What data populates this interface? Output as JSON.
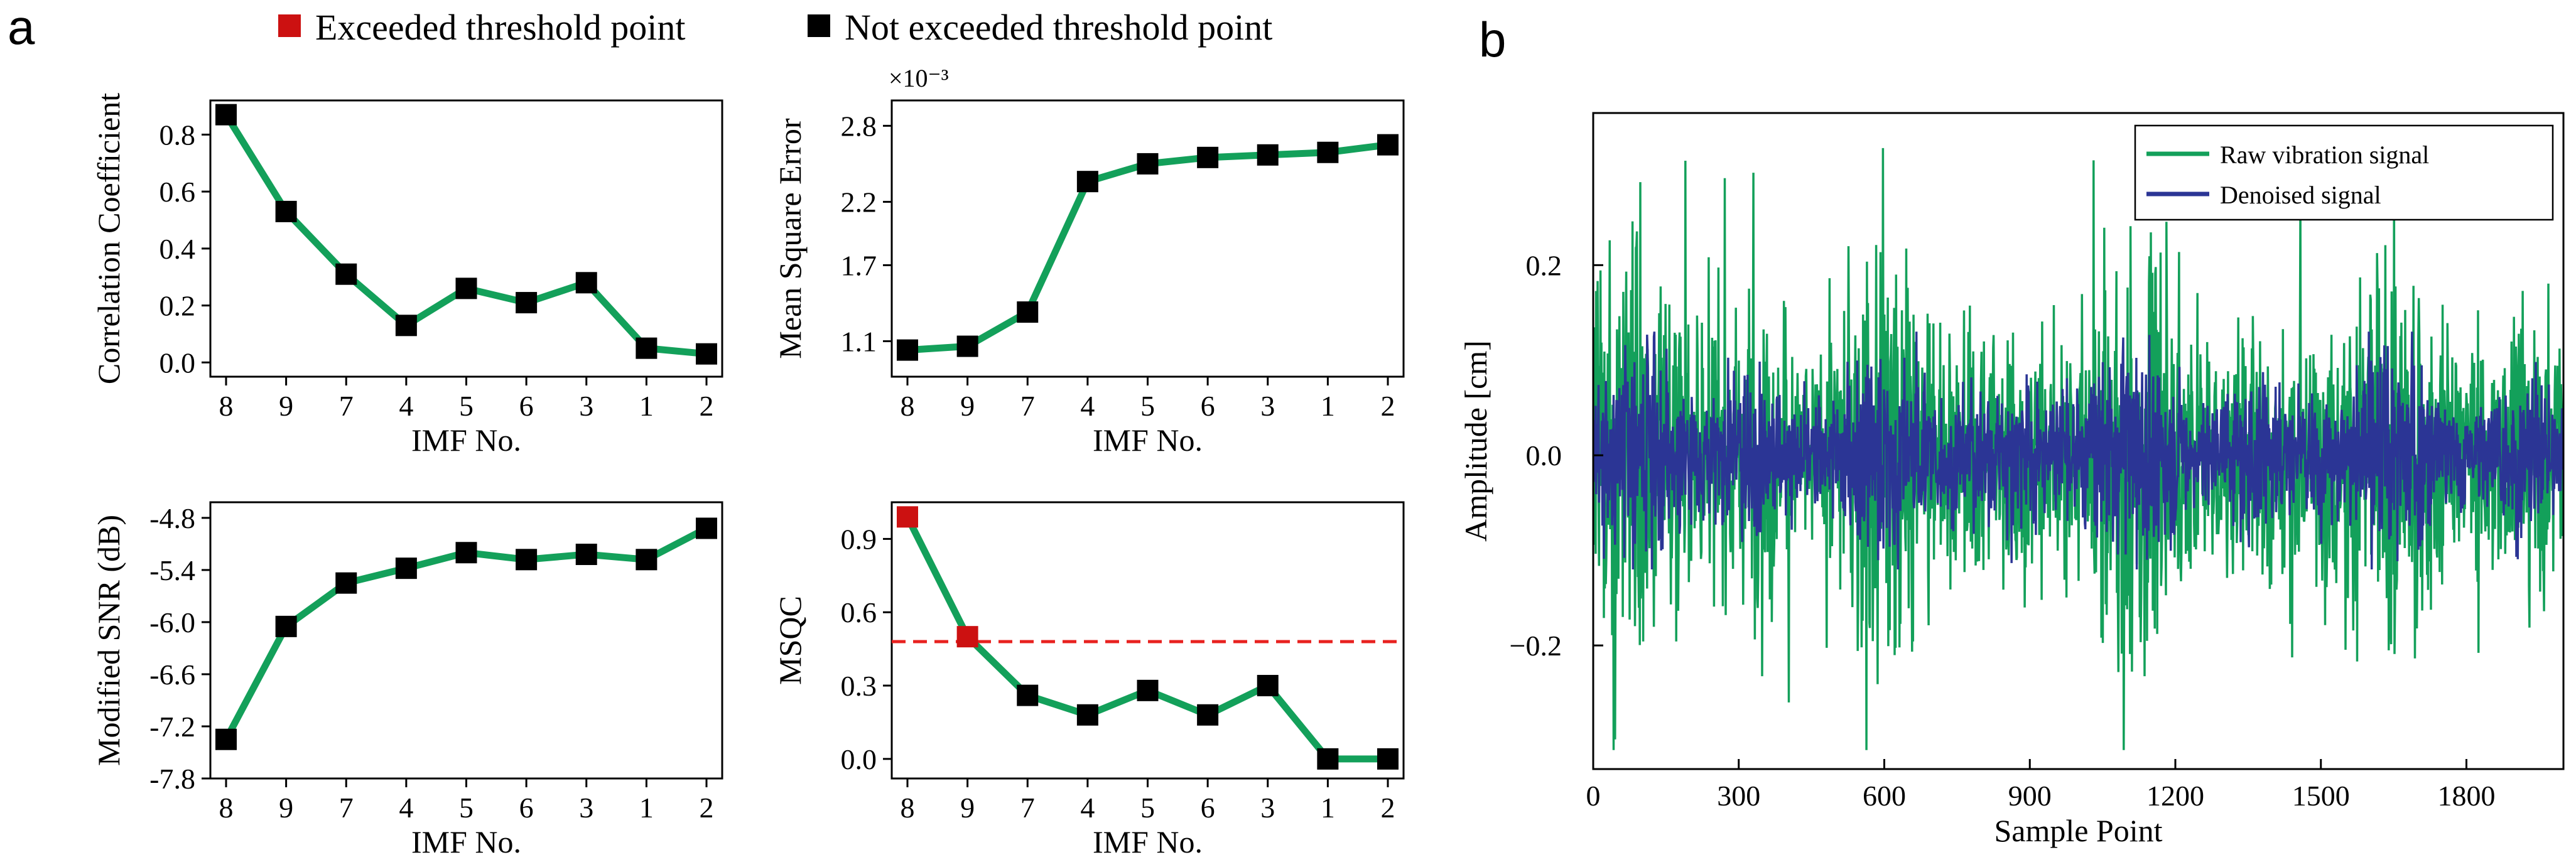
{
  "figure": {
    "panel_a_label": "a",
    "panel_b_label": "b",
    "legend": {
      "exceeded_label": "Exceeded threshold point",
      "not_exceeded_label": "Not exceeded threshold point",
      "exceeded_color": "#cc1111",
      "not_exceeded_color": "#000000"
    },
    "line_color": "#13a05a",
    "threshold_color": "#e8211f"
  },
  "chart_data": [
    {
      "id": "cc",
      "type": "line",
      "categories": [
        "8",
        "9",
        "7",
        "4",
        "5",
        "6",
        "3",
        "1",
        "2"
      ],
      "values": [
        0.87,
        0.53,
        0.31,
        0.13,
        0.26,
        0.21,
        0.28,
        0.05,
        0.03
      ],
      "xlabel": "IMF No.",
      "ylabel": "Correlation Coefficient",
      "ylim": [
        -0.05,
        0.92
      ],
      "yticks": [
        0.0,
        0.2,
        0.4,
        0.6,
        0.8
      ],
      "ytick_labels": [
        "0.0",
        "0.2",
        "0.4",
        "0.6",
        "0.8"
      ],
      "marker_colors": [
        "black",
        "black",
        "black",
        "black",
        "black",
        "black",
        "black",
        "black",
        "black"
      ]
    },
    {
      "id": "mse",
      "type": "line",
      "categories": [
        "8",
        "9",
        "7",
        "4",
        "5",
        "6",
        "3",
        "1",
        "2"
      ],
      "values": [
        1.03,
        1.06,
        1.33,
        2.36,
        2.5,
        2.55,
        2.57,
        2.59,
        2.65
      ],
      "xlabel": "IMF No.",
      "ylabel": "Mean Square Error",
      "scale_label": "×10⁻³",
      "ylim": [
        0.82,
        3.0
      ],
      "yticks": [
        1.1,
        1.7,
        2.2,
        2.8
      ],
      "ytick_labels": [
        "1.1",
        "1.7",
        "2.2",
        "2.8"
      ],
      "marker_colors": [
        "black",
        "black",
        "black",
        "black",
        "black",
        "black",
        "black",
        "black",
        "black"
      ]
    },
    {
      "id": "snr",
      "type": "line",
      "categories": [
        "8",
        "9",
        "7",
        "4",
        "5",
        "6",
        "3",
        "1",
        "2"
      ],
      "values": [
        -7.35,
        -6.05,
        -5.55,
        -5.38,
        -5.2,
        -5.28,
        -5.22,
        -5.28,
        -4.92
      ],
      "xlabel": "IMF No.",
      "ylabel": "Modified SNR (dB)",
      "ylim": [
        -7.8,
        -4.62
      ],
      "yticks": [
        -7.8,
        -7.2,
        -6.6,
        -6.0,
        -5.4,
        -4.8
      ],
      "ytick_labels": [
        "-7.8",
        "-7.2",
        "-6.6",
        "-6.0",
        "-5.4",
        "-4.8"
      ],
      "marker_colors": [
        "black",
        "black",
        "black",
        "black",
        "black",
        "black",
        "black",
        "black",
        "black"
      ]
    },
    {
      "id": "msqc",
      "type": "line",
      "categories": [
        "8",
        "9",
        "7",
        "4",
        "5",
        "6",
        "3",
        "1",
        "2"
      ],
      "values": [
        0.99,
        0.5,
        0.26,
        0.18,
        0.28,
        0.18,
        0.3,
        0.0,
        0.0
      ],
      "xlabel": "IMF No.",
      "ylabel": "MSQC",
      "threshold": 0.48,
      "ylim": [
        -0.08,
        1.05
      ],
      "yticks": [
        0.0,
        0.3,
        0.6,
        0.9
      ],
      "ytick_labels": [
        "0.0",
        "0.3",
        "0.6",
        "0.9"
      ],
      "marker_colors": [
        "red",
        "red",
        "black",
        "black",
        "black",
        "black",
        "black",
        "black",
        "black"
      ]
    },
    {
      "id": "signal",
      "type": "line",
      "xlabel": "Sample Point",
      "ylabel": "Amplitude [cm]",
      "xlim": [
        0,
        2000
      ],
      "ylim": [
        -0.33,
        0.36
      ],
      "xticks": [
        0,
        300,
        600,
        900,
        1200,
        1500,
        1800
      ],
      "xtick_labels": [
        "0",
        "300",
        "600",
        "900",
        "1200",
        "1500",
        "1800"
      ],
      "yticks": [
        -0.2,
        0.0,
        0.2
      ],
      "ytick_labels": [
        "−0.2",
        "0.0",
        "0.2"
      ],
      "series": [
        {
          "name": "Raw vibration signal",
          "color": "#13a05a",
          "amplitude": 0.1,
          "peak_max": 0.34,
          "peak_min": -0.31
        },
        {
          "name": "Denoised signal",
          "color": "#2b3595",
          "amplitude": 0.055,
          "peak_max": 0.13,
          "peak_min": -0.12
        }
      ],
      "legend_position": "top-right",
      "num_points": 2000
    }
  ]
}
